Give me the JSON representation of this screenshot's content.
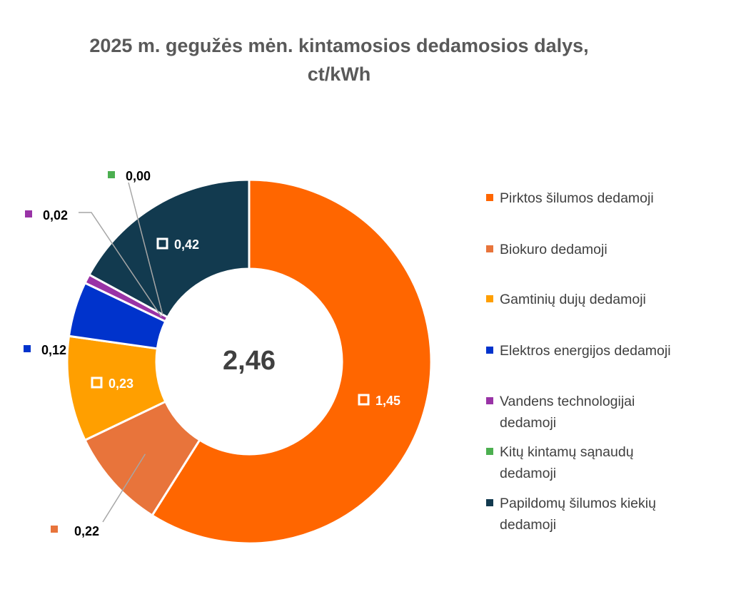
{
  "chart_data": {
    "type": "pie",
    "variant": "donut",
    "title_lines": [
      "2025 m.  gegužės mėn. kintamosios dedamosios dalys,",
      "ct/kWh"
    ],
    "center_label": "2,46",
    "legend_position": "right",
    "series": [
      {
        "name": "Pirktos šilumos dedamoji",
        "value": 1.45,
        "label": "1,45",
        "color": "#FF6600"
      },
      {
        "name": "Biokuro dedamoji",
        "value": 0.22,
        "label": "0,22",
        "color": "#E8743B"
      },
      {
        "name": "Gamtinių dujų dedamoji",
        "value": 0.23,
        "label": "0,23",
        "color": "#FF9F00"
      },
      {
        "name": "Elektros energijos dedamoji",
        "value": 0.12,
        "label": "0,12",
        "color": "#0033CC"
      },
      {
        "name": "Vandens technologijai dedamoji",
        "value": 0.02,
        "label": "0,02",
        "color": "#9933A6"
      },
      {
        "name": "Kitų kintamų sąnaudų dedamoji",
        "value": 0.0,
        "label": "0,00",
        "color": "#4CAF50"
      },
      {
        "name": "Papildomų šilumos kiekių dedamoji",
        "value": 0.42,
        "label": "0,42",
        "color": "#123A4F"
      }
    ]
  }
}
